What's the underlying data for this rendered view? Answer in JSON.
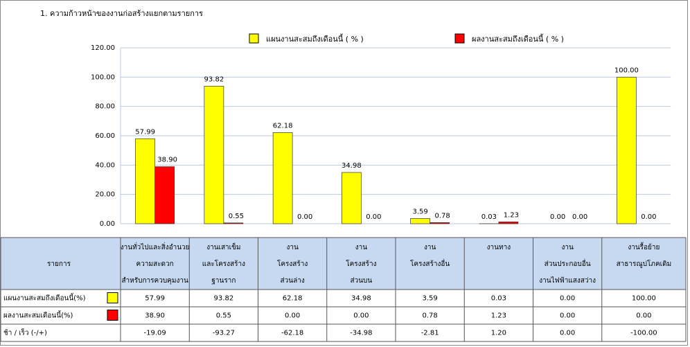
{
  "chart_data": {
    "type": "bar",
    "title": "1. ความก้าวหน้าของงานก่อสร้างแยกตามรายการ",
    "categories": [
      [
        "งานทั่วไปและสิ่งอำนวย",
        "ความสะดวก",
        "สำหรับการควบคุมงาน"
      ],
      [
        "งานเสาเข็ม",
        "และโครงสร้าง",
        "ฐานราก"
      ],
      [
        "งาน",
        "โครงสร้าง",
        "ส่วนล่าง"
      ],
      [
        "งาน",
        "โครงสร้าง",
        "ส่วนบน"
      ],
      [
        "งาน",
        "โครงสร้างอื่น"
      ],
      [
        "งานทาง"
      ],
      [
        "งาน",
        "ส่วนประกอบอื่น",
        "งานไฟฟ้าแสงสว่าง"
      ],
      [
        "งานรื้อย้าย",
        "สาธารณูปโภคเดิม"
      ]
    ],
    "series": [
      {
        "name": "แผนงานสะสมถึงเดือนนี้ ( % )",
        "color": "#ffff00",
        "values": [
          57.99,
          93.82,
          62.18,
          34.98,
          3.59,
          0.03,
          0,
          100
        ],
        "value_labels": [
          "57.99",
          "93.82",
          "62.18",
          "34.98",
          "3.59",
          "0.03",
          "0.00",
          "100.00"
        ]
      },
      {
        "name": "ผลงานสะสมถึงเดือนนี้ ( % )",
        "color": "#ff0000",
        "values": [
          38.9,
          0.55,
          0,
          0,
          0.78,
          1.23,
          0,
          0
        ],
        "value_labels": [
          "38.90",
          "0.55",
          "0.00",
          "0.00",
          "0.78",
          "1.23",
          "0.00",
          "0.00"
        ]
      }
    ],
    "ylim": [
      0,
      120
    ],
    "yticks": [
      {
        "value": 0,
        "label": "0.00"
      },
      {
        "value": 20,
        "label": "20.00"
      },
      {
        "value": 40,
        "label": "40.00"
      },
      {
        "value": 60,
        "label": "60.00"
      },
      {
        "value": 80,
        "label": "80.00"
      },
      {
        "value": 100,
        "label": "100.00"
      },
      {
        "value": 120,
        "label": "120.00"
      }
    ],
    "grid": true
  },
  "table": {
    "header": "รายการ",
    "row_labels": [
      "แผนงานสะสมถึงเดือนนี้(%)",
      "ผลงานสะสมเดือนนี้(%)",
      "ช้า / เร็ว  (-/+)"
    ],
    "diff": [
      "-19.09",
      "-93.27",
      "-62.18",
      "-34.98",
      "-2.81",
      "1.20",
      "0.00",
      "-100.00"
    ]
  }
}
